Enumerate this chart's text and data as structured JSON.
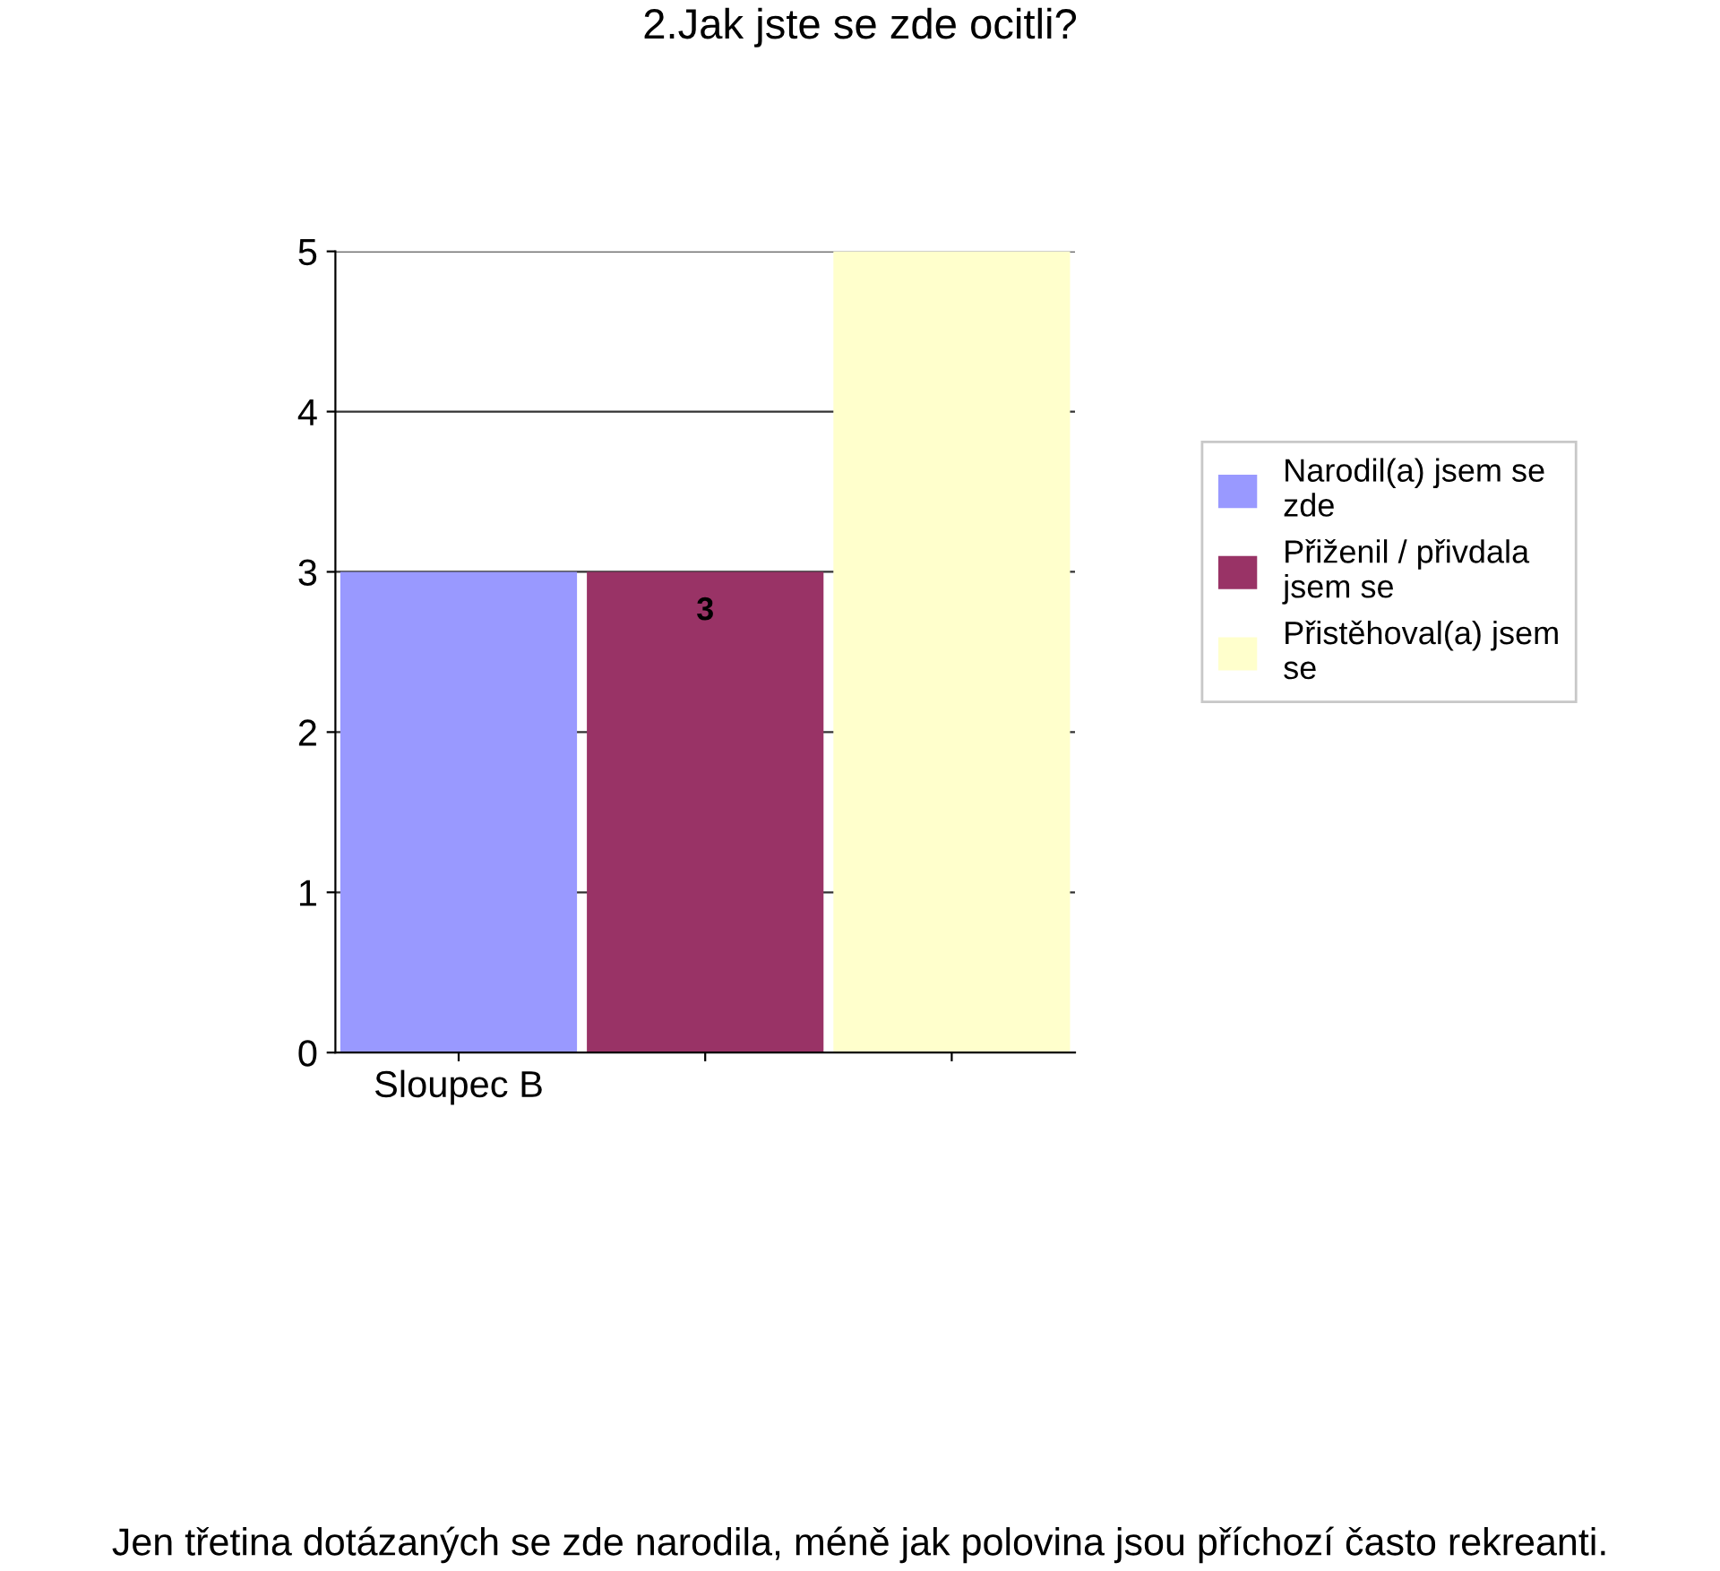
{
  "chart_data": {
    "type": "bar",
    "title": "2.Jak jste se zde ocitli?",
    "categories": [
      "Sloupec B",
      null,
      null
    ],
    "series": [
      {
        "name": "Narodil(a) jsem se zde",
        "color": "#9999ff",
        "values": [
          3,
          null,
          null
        ],
        "value_labels": [
          null,
          null,
          null
        ]
      },
      {
        "name": "Přiženil / přivdala jsem se",
        "color": "#993366",
        "values": [
          null,
          3,
          null
        ],
        "value_labels": [
          null,
          "3",
          null
        ]
      },
      {
        "name": "Přistěhoval(a) jsem se",
        "color": "#ffffcc",
        "values": [
          null,
          null,
          5
        ],
        "value_labels": [
          null,
          null,
          null
        ]
      }
    ],
    "ylim": [
      0,
      5
    ],
    "yticks": [
      0,
      1,
      2,
      3,
      4,
      5
    ],
    "grid": "y",
    "legend": "right",
    "annotations": [
      "Jen třetina dotázaných se zde narodila, méně jak polovina jsou příchozí často rekreanti."
    ]
  }
}
